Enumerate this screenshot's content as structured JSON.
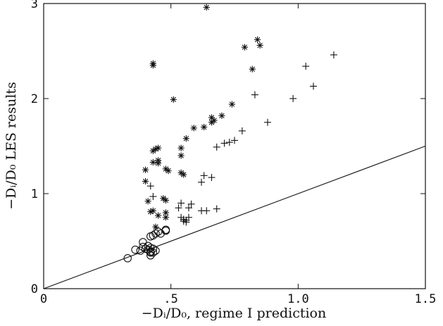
{
  "chart_data": {
    "type": "scatter",
    "xlabel": "−Dᵢ/D₀, regime I prediction",
    "ylabel": "−Dᵢ/D₀   LES results",
    "xlim": [
      0,
      1.5
    ],
    "ylim": [
      0,
      3
    ],
    "x_ticks": [
      {
        "v": 0,
        "label": "0"
      },
      {
        "v": 0.5,
        "label": ".5"
      },
      {
        "v": 1.0,
        "label": "1.0"
      },
      {
        "v": 1.5,
        "label": "1.5"
      }
    ],
    "y_ticks": [
      {
        "v": 0,
        "label": "0"
      },
      {
        "v": 1,
        "label": "1"
      },
      {
        "v": 2,
        "label": "2"
      },
      {
        "v": 3,
        "label": "3"
      }
    ],
    "reference_line": {
      "from": [
        0,
        0
      ],
      "to": [
        1.5,
        1.5
      ]
    },
    "grid": false,
    "legend": "none",
    "series": [
      {
        "marker": "circle",
        "points": [
          [
            0.33,
            0.32
          ],
          [
            0.36,
            0.41
          ],
          [
            0.38,
            0.4
          ],
          [
            0.39,
            0.44
          ],
          [
            0.39,
            0.49
          ],
          [
            0.4,
            0.42
          ],
          [
            0.41,
            0.41
          ],
          [
            0.41,
            0.45
          ],
          [
            0.42,
            0.38
          ],
          [
            0.42,
            0.35
          ],
          [
            0.42,
            0.39
          ],
          [
            0.42,
            0.43
          ],
          [
            0.43,
            0.38
          ],
          [
            0.43,
            0.42
          ],
          [
            0.42,
            0.55
          ],
          [
            0.43,
            0.56
          ],
          [
            0.44,
            0.58
          ],
          [
            0.45,
            0.6
          ],
          [
            0.46,
            0.58
          ],
          [
            0.48,
            0.62
          ],
          [
            0.48,
            0.61
          ],
          [
            0.44,
            0.4
          ]
        ]
      },
      {
        "marker": "asterisk",
        "points": [
          [
            0.43,
            2.37
          ],
          [
            0.43,
            2.35
          ],
          [
            0.64,
            2.96
          ],
          [
            0.51,
            1.99
          ],
          [
            0.43,
            1.45
          ],
          [
            0.44,
            1.47
          ],
          [
            0.45,
            1.48
          ],
          [
            0.43,
            1.33
          ],
          [
            0.45,
            1.35
          ],
          [
            0.45,
            1.32
          ],
          [
            0.4,
            1.25
          ],
          [
            0.4,
            1.13
          ],
          [
            0.41,
            0.92
          ],
          [
            0.42,
            0.81
          ],
          [
            0.43,
            0.82
          ],
          [
            0.44,
            0.65
          ],
          [
            0.45,
            0.77
          ],
          [
            0.47,
            0.95
          ],
          [
            0.48,
            0.93
          ],
          [
            0.48,
            0.8
          ],
          [
            0.48,
            0.75
          ],
          [
            0.48,
            1.26
          ],
          [
            0.49,
            1.24
          ],
          [
            0.54,
            1.48
          ],
          [
            0.54,
            1.4
          ],
          [
            0.54,
            1.22
          ],
          [
            0.55,
            1.2
          ],
          [
            0.56,
            1.58
          ],
          [
            0.59,
            1.69
          ],
          [
            0.63,
            1.7
          ],
          [
            0.66,
            1.8
          ],
          [
            0.66,
            1.75
          ],
          [
            0.67,
            1.77
          ],
          [
            0.7,
            1.82
          ],
          [
            0.74,
            1.94
          ],
          [
            0.79,
            2.54
          ],
          [
            0.82,
            2.31
          ],
          [
            0.84,
            2.62
          ],
          [
            0.85,
            2.56
          ]
        ]
      },
      {
        "marker": "plus",
        "points": [
          [
            0.42,
            1.08
          ],
          [
            0.43,
            0.97
          ],
          [
            0.53,
            0.85
          ],
          [
            0.54,
            0.9
          ],
          [
            0.54,
            0.75
          ],
          [
            0.55,
            0.73
          ],
          [
            0.55,
            0.71
          ],
          [
            0.56,
            0.7
          ],
          [
            0.56,
            0.72
          ],
          [
            0.57,
            0.75
          ],
          [
            0.57,
            0.85
          ],
          [
            0.58,
            0.89
          ],
          [
            0.62,
            0.82
          ],
          [
            0.62,
            1.12
          ],
          [
            0.63,
            1.19
          ],
          [
            0.64,
            0.82
          ],
          [
            0.66,
            1.17
          ],
          [
            0.68,
            0.84
          ],
          [
            0.68,
            1.49
          ],
          [
            0.71,
            1.53
          ],
          [
            0.73,
            1.54
          ],
          [
            0.75,
            1.56
          ],
          [
            0.78,
            1.66
          ],
          [
            0.83,
            2.04
          ],
          [
            0.88,
            1.75
          ],
          [
            0.98,
            2.0
          ],
          [
            1.03,
            2.34
          ],
          [
            1.06,
            2.13
          ],
          [
            1.14,
            2.46
          ]
        ]
      }
    ]
  }
}
